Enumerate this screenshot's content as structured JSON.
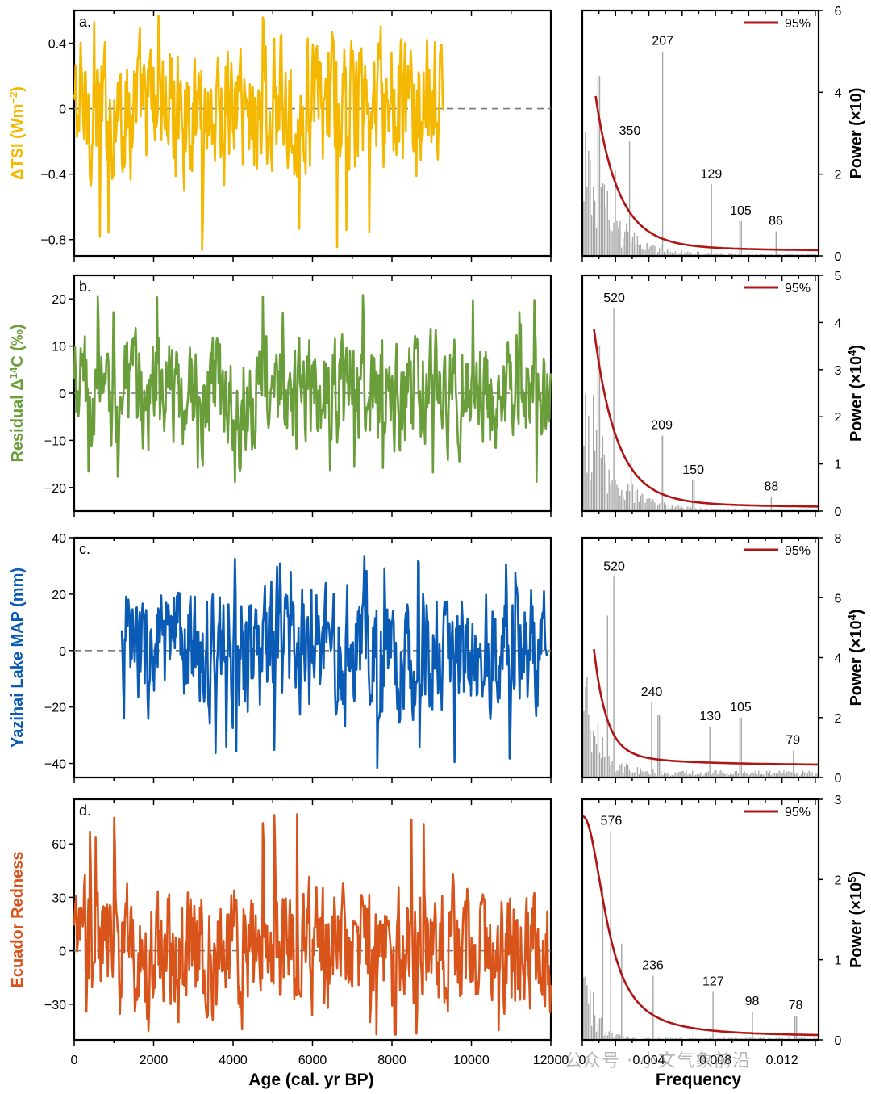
{
  "figure": {
    "xlabel_left": "Age (cal. yr BP)",
    "xlabel_right": "Frequency",
    "watermark": "公众号 · 小文气象前沿",
    "left_xticks": [
      "0",
      "2000",
      "4000",
      "6000",
      "8000",
      "10000",
      "12000"
    ],
    "right_xticks": [
      "0",
      "0.004",
      "0.008",
      "0.012"
    ],
    "legend_label": "95%"
  },
  "chart_data": [
    {
      "type": "line",
      "panel": "a.",
      "ylabel_parts": [
        "ΔTSI (Wm",
        "−2",
        ")"
      ],
      "color": "#F5B800",
      "xlim": [
        0,
        12000
      ],
      "ylim": [
        -0.9,
        0.6
      ],
      "yticks": [
        0.4,
        0,
        -0.4,
        -0.8
      ],
      "ytick_labels": [
        "0.4",
        "0",
        "−0.4",
        "−0.8"
      ],
      "x_range": [
        0,
        9300
      ],
      "y_min": -0.87,
      "y_max": 0.57,
      "series_desc": "solar irradiance anomaly, 0–9300 cal yr BP"
    },
    {
      "type": "line",
      "panel": "b.",
      "ylabel_parts": [
        "Residual Δ",
        "14",
        "C (‰)"
      ],
      "color": "#6A9E3A",
      "xlim": [
        0,
        12000
      ],
      "ylim": [
        -25,
        25
      ],
      "yticks": [
        20,
        10,
        0,
        -10,
        -20
      ],
      "ytick_labels": [
        "20",
        "10",
        "0",
        "−10",
        "−20"
      ],
      "x_range": [
        0,
        12000
      ],
      "y_min": -19,
      "y_max": 21
    },
    {
      "type": "line",
      "panel": "c.",
      "ylabel_parts": [
        "Yazihai Lake MAP (mm)"
      ],
      "color": "#0A5BB5",
      "xlim": [
        0,
        12000
      ],
      "ylim": [
        -45,
        40
      ],
      "yticks": [
        40,
        20,
        0,
        -20,
        -40
      ],
      "ytick_labels": [
        "40",
        "20",
        "0",
        "−20",
        "−40"
      ],
      "x_range": [
        1200,
        11900
      ],
      "y_min": -42,
      "y_max": 34
    },
    {
      "type": "line",
      "panel": "d.",
      "ylabel_parts": [
        "Ecuador Redness"
      ],
      "color": "#D9541A",
      "xlim": [
        0,
        12000
      ],
      "ylim": [
        -50,
        85
      ],
      "yticks": [
        60,
        30,
        0,
        -30
      ],
      "ytick_labels": [
        "60",
        "30",
        "0",
        "−30"
      ],
      "x_range": [
        0,
        12000
      ],
      "y_min": -47,
      "y_max": 78
    },
    {
      "type": "bar",
      "spectrum": "a",
      "ylabel_parts": [
        "Power (×10)"
      ],
      "ylim": [
        0,
        6
      ],
      "yticks": [
        0,
        2,
        4,
        6
      ],
      "ytick_labels": [
        "0",
        "2",
        "4",
        "6"
      ],
      "xlim": [
        0,
        0.0142
      ],
      "peaks": [
        {
          "label": "207",
          "freq": 0.00483,
          "power": 5.0
        },
        {
          "label": "350",
          "freq": 0.00286,
          "power": 2.8
        },
        {
          "label": "129",
          "freq": 0.00775,
          "power": 1.75
        },
        {
          "label": "105",
          "freq": 0.00952,
          "power": 0.85
        },
        {
          "label": "86",
          "freq": 0.01163,
          "power": 0.6
        }
      ],
      "extra_peaks": [
        {
          "freq": 0.001,
          "power": 4.4
        },
        {
          "freq": 0.002,
          "power": 2.1
        }
      ],
      "curve": {
        "a": 5.7,
        "k": 0.45,
        "c": 0.08,
        "x_start": 0.0008
      }
    },
    {
      "type": "bar",
      "spectrum": "b",
      "ylabel_parts": [
        "Power (×10",
        "4",
        ")"
      ],
      "ylim": [
        0,
        5
      ],
      "yticks": [
        0,
        1,
        2,
        3,
        4,
        5
      ],
      "ytick_labels": [
        "0",
        "1",
        "2",
        "3",
        "4",
        "5"
      ],
      "xlim": [
        0,
        0.0142
      ],
      "peaks": [
        {
          "label": "520",
          "freq": 0.00192,
          "power": 4.3
        },
        {
          "label": "209",
          "freq": 0.00478,
          "power": 1.6
        },
        {
          "label": "150",
          "freq": 0.00667,
          "power": 0.65
        },
        {
          "label": "88",
          "freq": 0.01136,
          "power": 0.3
        }
      ],
      "extra_peaks": [
        {
          "freq": 0.001,
          "power": 3.5
        },
        {
          "freq": 0.0029,
          "power": 1.2
        }
      ],
      "curve": {
        "a": 5.3,
        "k": 0.45,
        "c": 0.04,
        "x_start": 0.0007
      }
    },
    {
      "type": "bar",
      "spectrum": "c",
      "ylabel_parts": [
        "Power (×10",
        "4",
        ")"
      ],
      "ylim": [
        0,
        8
      ],
      "yticks": [
        0,
        2,
        4,
        6,
        8
      ],
      "ytick_labels": [
        "0",
        "2",
        "4",
        "6",
        "8"
      ],
      "xlim": [
        0,
        0.0142
      ],
      "peaks": [
        {
          "label": "520",
          "freq": 0.00192,
          "power": 6.7
        },
        {
          "label": "240",
          "freq": 0.00417,
          "power": 2.5
        },
        {
          "label": "130",
          "freq": 0.00769,
          "power": 1.7
        },
        {
          "label": "105",
          "freq": 0.00952,
          "power": 2.0
        },
        {
          "label": "79",
          "freq": 0.01266,
          "power": 0.9
        }
      ],
      "extra_peaks": [
        {
          "freq": 0.0015,
          "power": 5.4
        },
        {
          "freq": 0.0046,
          "power": 2.1
        }
      ],
      "curve": {
        "a": 7.8,
        "k": 0.85,
        "c": 0.35,
        "x_start": 0.0007
      }
    },
    {
      "type": "bar",
      "spectrum": "d",
      "ylabel_parts": [
        "Power (×10",
        "5",
        ")"
      ],
      "ylim": [
        0,
        3
      ],
      "yticks": [
        0,
        1,
        2,
        3
      ],
      "ytick_labels": [
        "0",
        "1",
        "2",
        "3"
      ],
      "xlim": [
        0,
        0.0142
      ],
      "peaks": [
        {
          "label": "576",
          "freq": 0.00174,
          "power": 2.6
        },
        {
          "label": "236",
          "freq": 0.00424,
          "power": 0.8
        },
        {
          "label": "127",
          "freq": 0.00787,
          "power": 0.6
        },
        {
          "label": "98",
          "freq": 0.0102,
          "power": 0.35
        },
        {
          "label": "78",
          "freq": 0.01282,
          "power": 0.3
        }
      ],
      "extra_peaks": [
        {
          "freq": 0.0012,
          "power": 1.9
        },
        {
          "freq": 0.0024,
          "power": 1.2
        }
      ],
      "curve": {
        "a": 2.75,
        "k": 1.25,
        "c": 0.04,
        "flat": true,
        "x_start": 0.0
      }
    }
  ]
}
